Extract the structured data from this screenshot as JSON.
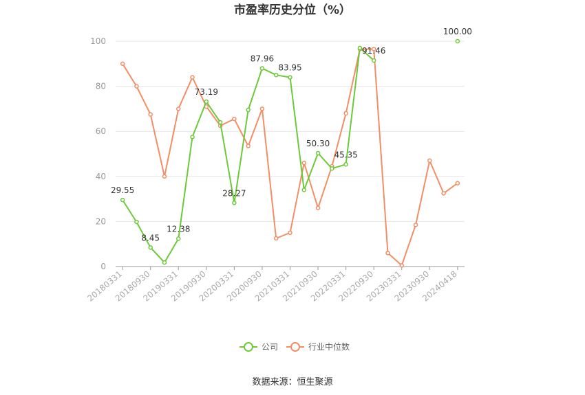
{
  "chart_data": {
    "type": "line",
    "title": "市盈率历史分位（%）",
    "source": "数据来源：恒生聚源",
    "ylim": [
      0,
      100
    ],
    "yticks": [
      0,
      20,
      40,
      60,
      80,
      100
    ],
    "x_tick_labels": [
      "20180331",
      "20180930",
      "20190331",
      "20190930",
      "20200331",
      "20200930",
      "20210331",
      "20210930",
      "20220331",
      "20220930",
      "20230331",
      "20230930",
      "20240418"
    ],
    "x_count": 25,
    "grid": true,
    "legend_position": "bottom",
    "series": [
      {
        "name": "公司",
        "color": "#6cc93a",
        "values": [
          29.55,
          19.8,
          8.45,
          1.8,
          12.38,
          57.5,
          73.19,
          64.0,
          28.27,
          69.5,
          87.96,
          85.0,
          83.95,
          34.0,
          50.3,
          43.5,
          45.35,
          97.0,
          91.46,
          null,
          null,
          null,
          null,
          null,
          100.0
        ],
        "labels": [
          {
            "index": 0,
            "text": "29.55"
          },
          {
            "index": 2,
            "text": "8.45"
          },
          {
            "index": 4,
            "text": "12.38"
          },
          {
            "index": 6,
            "text": "73.19"
          },
          {
            "index": 8,
            "text": "28.27"
          },
          {
            "index": 10,
            "text": "87.96"
          },
          {
            "index": 12,
            "text": "83.95"
          },
          {
            "index": 14,
            "text": "50.30"
          },
          {
            "index": 16,
            "text": "45.35"
          },
          {
            "index": 18,
            "text": "91.46"
          },
          {
            "index": 24,
            "text": "100.00"
          }
        ]
      },
      {
        "name": "行业中位数",
        "color": "#f28e65",
        "values": [
          90.0,
          80.0,
          67.5,
          40.0,
          70.0,
          84.0,
          71.0,
          62.5,
          65.5,
          53.5,
          70.0,
          12.5,
          15.0,
          46.0,
          26.0,
          44.5,
          68.0,
          96.5,
          96.5,
          6.0,
          0.5,
          18.5,
          47.0,
          32.5,
          37.0
        ],
        "labels": []
      }
    ]
  }
}
